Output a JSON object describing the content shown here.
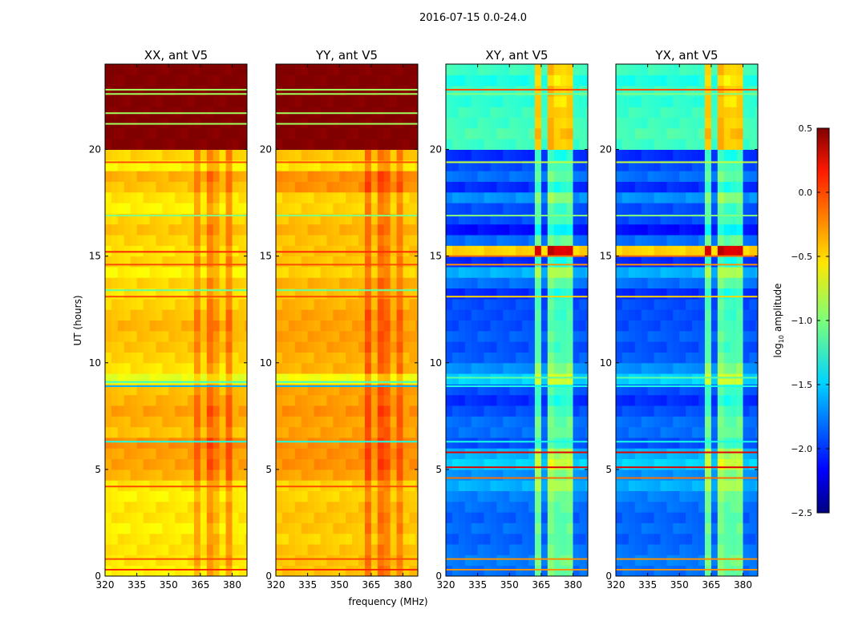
{
  "chart_data": {
    "type": "heatmap",
    "title": "2016-07-15 0.0-24.0",
    "xlabel": "frequency (MHz)",
    "ylabel": "UT (hours)",
    "xlim": [
      320,
      387
    ],
    "ylim": [
      0,
      24
    ],
    "xticks": [
      320,
      335,
      350,
      365,
      380
    ],
    "yticks": [
      0,
      5,
      10,
      15,
      20
    ],
    "time_bin_hours": 0.5,
    "freq_bin_mhz": 3,
    "colorbar": {
      "label": "log",
      "label_sub": "10",
      "label_rest": " amplitude",
      "colormap": "jet",
      "range": [
        -2.5,
        0.5
      ],
      "ticks": [
        "0.5",
        "0.0",
        "−0.5",
        "−1.0",
        "−1.5",
        "−2.0",
        "−2.5"
      ],
      "tick_values": [
        0.5,
        0.0,
        -0.5,
        -1.0,
        -1.5,
        -2.0,
        -2.5
      ]
    },
    "panels": [
      {
        "title": "XX, ant V5",
        "row_values": [
          -0.6,
          -0.55,
          -0.55,
          -0.55,
          -0.6,
          -0.55,
          -0.55,
          -0.6,
          -0.55,
          -0.4,
          -0.35,
          -0.35,
          -0.3,
          -0.45,
          -0.4,
          -0.35,
          -0.4,
          -0.45,
          -0.7,
          -0.55,
          -0.5,
          -0.45,
          -0.45,
          -0.4,
          -0.45,
          -0.5,
          -0.55,
          -0.5,
          -0.6,
          -0.5,
          -0.55,
          -0.5,
          -0.45,
          -0.5,
          -0.6,
          -0.55,
          -0.45,
          -0.4,
          -0.6,
          -0.5,
          0.5,
          0.5,
          0.5,
          0.5,
          0.5,
          0.5,
          0.5,
          0.5
        ],
        "channel_boost": [
          [
            362,
            366,
            0.2
          ],
          [
            368,
            370,
            0.25
          ],
          [
            372,
            374,
            0.15
          ],
          [
            376,
            380,
            0.25
          ]
        ],
        "lines": [
          [
            0.3,
            0.0
          ],
          [
            0.8,
            -0.1
          ],
          [
            4.2,
            -0.1
          ],
          [
            6.3,
            -1.3
          ],
          [
            8.9,
            -1.6
          ],
          [
            9.1,
            -1.2
          ],
          [
            13.1,
            -0.1
          ],
          [
            13.4,
            -1.1
          ],
          [
            14.6,
            -0.1
          ],
          [
            15.2,
            0.0
          ],
          [
            16.9,
            -1.0
          ],
          [
            19.4,
            -0.1
          ],
          [
            21.2,
            -0.9
          ],
          [
            21.7,
            -0.9
          ],
          [
            22.6,
            -0.9
          ],
          [
            22.8,
            -0.9
          ]
        ]
      },
      {
        "title": "YY, ant V5",
        "row_values": [
          -0.45,
          -0.45,
          -0.45,
          -0.5,
          -0.45,
          -0.45,
          -0.45,
          -0.5,
          -0.5,
          -0.35,
          -0.3,
          -0.3,
          -0.3,
          -0.35,
          -0.35,
          -0.3,
          -0.35,
          -0.35,
          -0.65,
          -0.4,
          -0.4,
          -0.35,
          -0.35,
          -0.35,
          -0.35,
          -0.4,
          -0.45,
          -0.4,
          -0.5,
          -0.45,
          -0.45,
          -0.45,
          -0.4,
          -0.45,
          -0.5,
          -0.5,
          -0.3,
          -0.3,
          -0.55,
          -0.45,
          0.5,
          0.5,
          0.5,
          0.5,
          0.5,
          0.5,
          0.5,
          0.5
        ],
        "channel_boost": [
          [
            362,
            366,
            0.25
          ],
          [
            368,
            370,
            0.25
          ],
          [
            372,
            374,
            0.2
          ],
          [
            376,
            380,
            0.2
          ]
        ],
        "lines": [
          [
            0.3,
            0.0
          ],
          [
            0.8,
            -0.1
          ],
          [
            4.2,
            -0.1
          ],
          [
            6.3,
            -1.3
          ],
          [
            8.9,
            -1.6
          ],
          [
            9.1,
            -1.2
          ],
          [
            13.1,
            -0.1
          ],
          [
            13.4,
            -1.1
          ],
          [
            14.6,
            -0.1
          ],
          [
            15.2,
            0.0
          ],
          [
            16.9,
            -1.0
          ],
          [
            19.4,
            -0.1
          ],
          [
            21.2,
            -0.9
          ],
          [
            21.7,
            -0.9
          ],
          [
            22.6,
            -0.9
          ],
          [
            22.8,
            -0.9
          ]
        ]
      },
      {
        "title": "XY, ant V5",
        "row_values": [
          -1.8,
          -1.75,
          -1.8,
          -1.85,
          -1.8,
          -1.85,
          -1.8,
          -1.75,
          -1.6,
          -1.7,
          -1.5,
          -1.6,
          -1.9,
          -1.8,
          -1.8,
          -1.9,
          -2.0,
          -1.9,
          -1.5,
          -1.7,
          -1.85,
          -1.9,
          -1.85,
          -1.9,
          -1.9,
          -1.9,
          -2.0,
          -1.8,
          -1.6,
          -2.0,
          -0.5,
          -1.8,
          -2.1,
          -1.9,
          -1.9,
          -1.7,
          -2.0,
          -1.8,
          -1.9,
          -2.0,
          -1.2,
          -1.15,
          -1.2,
          -1.2,
          -1.25,
          -1.2,
          -1.3,
          -1.2
        ],
        "channel_boost": [
          [
            362,
            366,
            0.75
          ],
          [
            367,
            370,
            0.8
          ],
          [
            372,
            374,
            0.7
          ],
          [
            375,
            377,
            0.7
          ],
          [
            378,
            381,
            0.75
          ]
        ],
        "lines": [
          [
            0.3,
            -0.3
          ],
          [
            0.8,
            -0.3
          ],
          [
            4.6,
            -0.2
          ],
          [
            5.1,
            0.2
          ],
          [
            5.8,
            0.2
          ],
          [
            6.3,
            -1.3
          ],
          [
            8.9,
            -1.3
          ],
          [
            9.3,
            -1.1
          ],
          [
            13.1,
            -0.5
          ],
          [
            14.6,
            -0.3
          ],
          [
            15.0,
            -0.2
          ],
          [
            16.9,
            -1.0
          ],
          [
            19.4,
            -0.8
          ],
          [
            22.8,
            -0.1
          ],
          [
            22.6,
            -1.0
          ]
        ]
      },
      {
        "title": "YX, ant V5",
        "row_values": [
          -1.8,
          -1.75,
          -1.8,
          -1.85,
          -1.8,
          -1.85,
          -1.8,
          -1.75,
          -1.6,
          -1.7,
          -1.5,
          -1.6,
          -1.9,
          -1.8,
          -1.8,
          -1.9,
          -2.0,
          -1.9,
          -1.5,
          -1.7,
          -1.85,
          -1.9,
          -1.85,
          -1.9,
          -1.9,
          -1.9,
          -2.0,
          -1.8,
          -1.6,
          -2.0,
          -0.5,
          -1.8,
          -2.1,
          -1.9,
          -1.9,
          -1.7,
          -2.0,
          -1.8,
          -1.9,
          -2.0,
          -1.2,
          -1.15,
          -1.2,
          -1.2,
          -1.25,
          -1.2,
          -1.3,
          -1.2
        ],
        "channel_boost": [
          [
            362,
            366,
            0.75
          ],
          [
            367,
            370,
            0.8
          ],
          [
            372,
            374,
            0.7
          ],
          [
            375,
            377,
            0.7
          ],
          [
            378,
            381,
            0.75
          ]
        ],
        "lines": [
          [
            0.3,
            -0.3
          ],
          [
            0.8,
            -0.3
          ],
          [
            4.6,
            -0.2
          ],
          [
            5.1,
            0.2
          ],
          [
            5.8,
            0.2
          ],
          [
            6.3,
            -1.3
          ],
          [
            8.9,
            -1.3
          ],
          [
            9.3,
            -1.1
          ],
          [
            13.1,
            -0.5
          ],
          [
            14.6,
            -0.3
          ],
          [
            15.0,
            -0.2
          ],
          [
            16.9,
            -1.0
          ],
          [
            19.4,
            -0.8
          ],
          [
            22.8,
            -0.1
          ],
          [
            22.6,
            -1.0
          ]
        ]
      }
    ]
  }
}
